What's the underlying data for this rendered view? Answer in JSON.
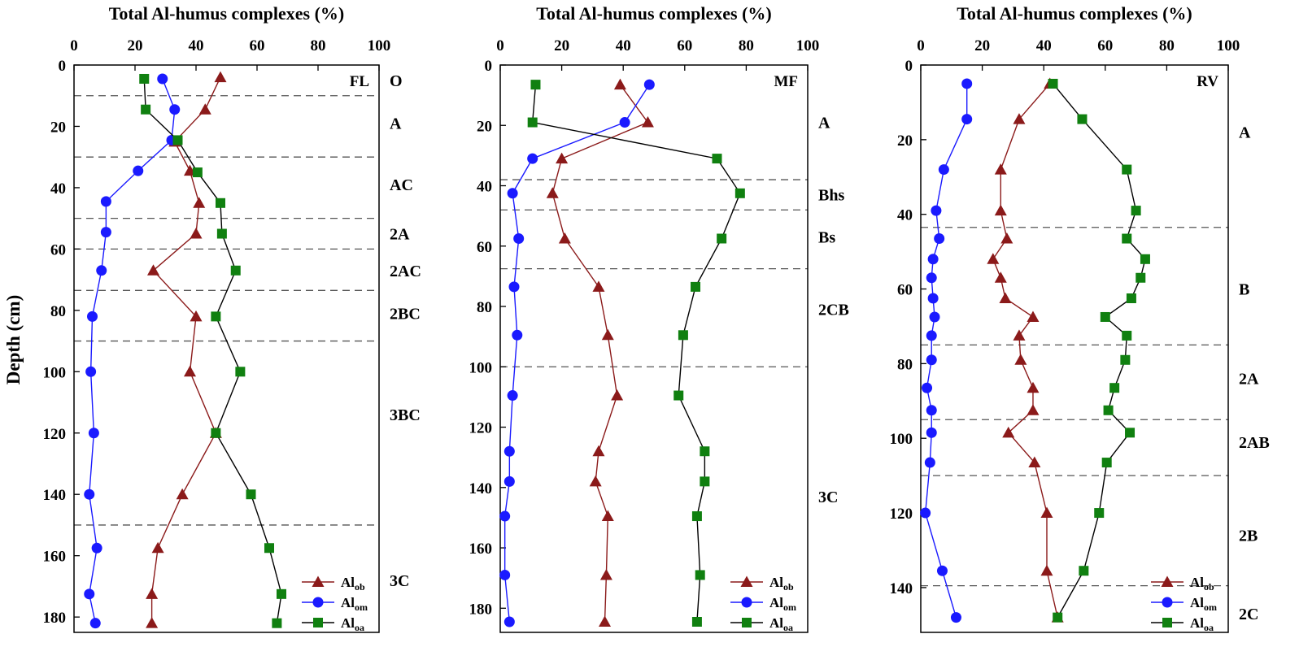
{
  "figure": {
    "ylabel": "Depth (cm)"
  },
  "chart_data": [
    {
      "type": "line",
      "site": "FL",
      "title": "Total Al-humus complexes (%)",
      "xlabel": "Total Al-humus complexes (%)",
      "ylabel": "Depth (cm)",
      "xlim": [
        0,
        100
      ],
      "ylim": [
        185,
        0
      ],
      "x_ticks": [
        0,
        20,
        40,
        60,
        80,
        100
      ],
      "y_ticks": [
        0,
        20,
        40,
        60,
        80,
        100,
        120,
        140,
        160,
        180
      ],
      "horizon_boundaries": [
        10,
        30,
        50,
        60,
        73.5,
        90,
        150
      ],
      "horizons": [
        {
          "label": "O",
          "depth": 5
        },
        {
          "label": "A",
          "depth": 19
        },
        {
          "label": "AC",
          "depth": 39
        },
        {
          "label": "2A",
          "depth": 55
        },
        {
          "label": "2AC",
          "depth": 67
        },
        {
          "label": "2BC",
          "depth": 81
        },
        {
          "label": "3BC",
          "depth": 114
        },
        {
          "label": "3C",
          "depth": 168
        }
      ],
      "legend": {
        "position": "bottom-right",
        "entries": [
          {
            "label": "Al",
            "sub": "ob"
          },
          {
            "label": "Al",
            "sub": "om"
          },
          {
            "label": "Al",
            "sub": "oa"
          }
        ]
      },
      "series": [
        {
          "name": "Alob",
          "color": "#8b1a1a",
          "marker": "triangle",
          "points": [
            [
              48,
              4
            ],
            [
              43,
              14.5
            ],
            [
              33,
              25
            ],
            [
              38,
              34.5
            ],
            [
              41,
              45
            ],
            [
              40,
              55
            ],
            [
              26,
              67
            ],
            [
              40,
              82
            ],
            [
              38,
              100
            ],
            [
              46.5,
              120
            ],
            [
              35.5,
              140
            ],
            [
              27.5,
              157.5
            ],
            [
              25.5,
              172.5
            ],
            [
              25.5,
              182
            ]
          ]
        },
        {
          "name": "Alom",
          "color": "#1a1aff",
          "marker": "circle",
          "points": [
            [
              29,
              4.5
            ],
            [
              33,
              14.5
            ],
            [
              32,
              24.5
            ],
            [
              21,
              34.5
            ],
            [
              10.5,
              44.5
            ],
            [
              10.5,
              54.5
            ],
            [
              9,
              67
            ],
            [
              6,
              82
            ],
            [
              5.5,
              100
            ],
            [
              6.5,
              120
            ],
            [
              5,
              140
            ],
            [
              7.5,
              157.5
            ],
            [
              5,
              172.5
            ],
            [
              7,
              182
            ]
          ]
        },
        {
          "name": "Aloa",
          "color": "#108010",
          "marker": "square",
          "points": [
            [
              23,
              4.5
            ],
            [
              23.5,
              14.5
            ],
            [
              34,
              24.5
            ],
            [
              40.5,
              35
            ],
            [
              48,
              45
            ],
            [
              48.5,
              55
            ],
            [
              53,
              67
            ],
            [
              46.5,
              82
            ],
            [
              54.5,
              100
            ],
            [
              46.5,
              120
            ],
            [
              58,
              140
            ],
            [
              64,
              157.5
            ],
            [
              68,
              172.5
            ],
            [
              66.5,
              182
            ]
          ]
        }
      ]
    },
    {
      "type": "line",
      "site": "MF",
      "title": "Total Al-humus complexes (%)",
      "xlabel": "Total Al-humus complexes (%)",
      "ylabel": "",
      "xlim": [
        0,
        100
      ],
      "ylim": [
        188,
        0
      ],
      "x_ticks": [
        0,
        20,
        40,
        60,
        80,
        100
      ],
      "y_ticks": [
        0,
        20,
        40,
        60,
        80,
        100,
        120,
        140,
        160,
        180
      ],
      "horizon_boundaries": [
        38,
        48,
        67.5,
        100
      ],
      "horizons": [
        {
          "label": "A",
          "depth": 19
        },
        {
          "label": "Bhs",
          "depth": 43
        },
        {
          "label": "Bs",
          "depth": 57
        },
        {
          "label": "2CB",
          "depth": 81
        },
        {
          "label": "3C",
          "depth": 143
        }
      ],
      "legend": {
        "position": "bottom-right",
        "entries": [
          {
            "label": "Al",
            "sub": "ob"
          },
          {
            "label": "Al",
            "sub": "om"
          },
          {
            "label": "Al",
            "sub": "oa"
          }
        ]
      },
      "series": [
        {
          "name": "Alob",
          "color": "#8b1a1a",
          "marker": "triangle",
          "points": [
            [
              39,
              6.5
            ],
            [
              48,
              19
            ],
            [
              20,
              31
            ],
            [
              17,
              42.5
            ],
            [
              21,
              57.5
            ],
            [
              32,
              73.5
            ],
            [
              35,
              89.5
            ],
            [
              38,
              109.5
            ],
            [
              32,
              128
            ],
            [
              31,
              138
            ],
            [
              35,
              149.5
            ],
            [
              34.5,
              169
            ],
            [
              34,
              184.5
            ]
          ]
        },
        {
          "name": "Alom",
          "color": "#1a1aff",
          "marker": "circle",
          "points": [
            [
              48.5,
              6.5
            ],
            [
              40.5,
              19
            ],
            [
              10.5,
              31
            ],
            [
              4,
              42.5
            ],
            [
              6,
              57.5
            ],
            [
              4.5,
              73.5
            ],
            [
              5.5,
              89.5
            ],
            [
              4,
              109.5
            ],
            [
              3,
              128
            ],
            [
              3,
              138
            ],
            [
              1.5,
              149.5
            ],
            [
              1.5,
              169
            ],
            [
              3,
              184.5
            ]
          ]
        },
        {
          "name": "Aloa",
          "color": "#108010",
          "marker": "square",
          "points": [
            [
              11.5,
              6.5
            ],
            [
              10.5,
              19
            ],
            [
              70.5,
              31
            ],
            [
              78,
              42.5
            ],
            [
              72,
              57.5
            ],
            [
              63.5,
              73.5
            ],
            [
              59.5,
              89.5
            ],
            [
              58,
              109.5
            ],
            [
              66.5,
              128
            ],
            [
              66.5,
              138
            ],
            [
              64,
              149.5
            ],
            [
              65,
              169
            ],
            [
              64,
              184.5
            ]
          ]
        }
      ]
    },
    {
      "type": "line",
      "site": "RV",
      "title": "Total Al-humus complexes (%)",
      "xlabel": "Total Al-humus complexes (%)",
      "ylabel": "",
      "xlim": [
        0,
        100
      ],
      "ylim": [
        152,
        0
      ],
      "x_ticks": [
        0,
        20,
        40,
        60,
        80,
        100
      ],
      "y_ticks": [
        0,
        20,
        40,
        60,
        80,
        100,
        120,
        140
      ],
      "horizon_boundaries": [
        43.5,
        75,
        95,
        110,
        139.5
      ],
      "horizons": [
        {
          "label": "A",
          "depth": 18
        },
        {
          "label": "B",
          "depth": 60
        },
        {
          "label": "2A",
          "depth": 84
        },
        {
          "label": "2AB",
          "depth": 101
        },
        {
          "label": "2B",
          "depth": 126
        },
        {
          "label": "2C",
          "depth": 147
        }
      ],
      "legend": {
        "position": "bottom-right",
        "entries": [
          {
            "label": "Al",
            "sub": "ob"
          },
          {
            "label": "Al",
            "sub": "om"
          },
          {
            "label": "Al",
            "sub": "oa"
          }
        ]
      },
      "series": [
        {
          "name": "Alob",
          "color": "#8b1a1a",
          "marker": "triangle",
          "points": [
            [
              42,
              5
            ],
            [
              32,
              14.5
            ],
            [
              26,
              28
            ],
            [
              26,
              39
            ],
            [
              28,
              46.5
            ],
            [
              23.5,
              52
            ],
            [
              26,
              57
            ],
            [
              27.5,
              62.5
            ],
            [
              36.5,
              67.5
            ],
            [
              32,
              72.5
            ],
            [
              32.5,
              79
            ],
            [
              36.5,
              86.5
            ],
            [
              36.5,
              92.5
            ],
            [
              28.5,
              98.5
            ],
            [
              37,
              106.5
            ],
            [
              41,
              120
            ],
            [
              41,
              135.5
            ],
            [
              44.5,
              148
            ]
          ]
        },
        {
          "name": "Alom",
          "color": "#1a1aff",
          "marker": "circle",
          "points": [
            [
              15,
              5
            ],
            [
              15,
              14.5
            ],
            [
              7.5,
              28
            ],
            [
              5,
              39
            ],
            [
              6,
              46.5
            ],
            [
              4,
              52
            ],
            [
              3.5,
              57
            ],
            [
              4,
              62.5
            ],
            [
              4.5,
              67.5
            ],
            [
              3.5,
              72.5
            ],
            [
              3.5,
              79
            ],
            [
              2,
              86.5
            ],
            [
              3.5,
              92.5
            ],
            [
              3.5,
              98.5
            ],
            [
              3,
              106.5
            ],
            [
              1.5,
              120
            ],
            [
              7,
              135.5
            ],
            [
              11.5,
              148
            ]
          ]
        },
        {
          "name": "Aloa",
          "color": "#108010",
          "marker": "square",
          "points": [
            [
              43,
              5
            ],
            [
              52.5,
              14.5
            ],
            [
              67,
              28
            ],
            [
              70,
              39
            ],
            [
              67,
              46.5
            ],
            [
              73,
              52
            ],
            [
              71.5,
              57
            ],
            [
              68.5,
              62.5
            ],
            [
              60,
              67.5
            ],
            [
              67,
              72.5
            ],
            [
              66.5,
              79
            ],
            [
              63,
              86.5
            ],
            [
              61,
              92.5
            ],
            [
              68,
              98.5
            ],
            [
              60.5,
              106.5
            ],
            [
              58,
              120
            ],
            [
              53,
              135.5
            ],
            [
              44.5,
              148
            ]
          ]
        }
      ]
    }
  ]
}
